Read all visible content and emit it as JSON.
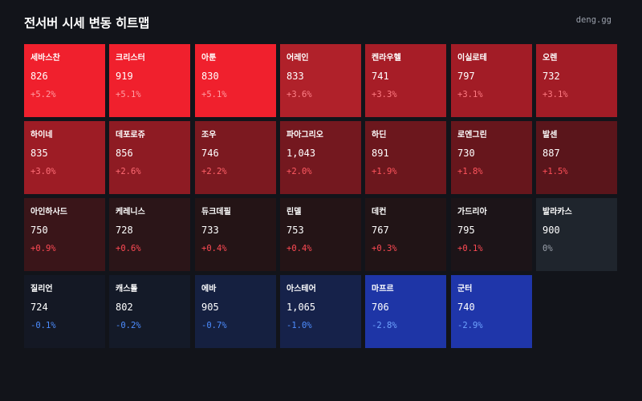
{
  "header": {
    "title": "전서버 시세 변동 히트맵",
    "brand": "deng.gg"
  },
  "colors": {
    "background": "#12141a",
    "up_text": "#ff5a5a",
    "down_text": "#4d8dff",
    "flat_text": "#9aa0ab"
  },
  "tiles": [
    {
      "name": "세바스찬",
      "price": "826",
      "change": "+5.2%",
      "bg": "#f0202d",
      "change_color": "#ff9da3"
    },
    {
      "name": "크리스터",
      "price": "919",
      "change": "+5.1%",
      "bg": "#f0202d",
      "change_color": "#ff9da3"
    },
    {
      "name": "아툰",
      "price": "830",
      "change": "+5.1%",
      "bg": "#f0202d",
      "change_color": "#ff9da3"
    },
    {
      "name": "어레인",
      "price": "833",
      "change": "+3.6%",
      "bg": "#b0212a",
      "change_color": "#ff8088"
    },
    {
      "name": "켄라우헬",
      "price": "741",
      "change": "+3.3%",
      "bg": "#a71d27",
      "change_color": "#ff7a82"
    },
    {
      "name": "이실로테",
      "price": "797",
      "change": "+3.1%",
      "bg": "#a21c26",
      "change_color": "#ff7a82"
    },
    {
      "name": "오렌",
      "price": "732",
      "change": "+3.1%",
      "bg": "#a21c26",
      "change_color": "#ff7a82"
    },
    {
      "name": "하이네",
      "price": "835",
      "change": "+3.0%",
      "bg": "#9d1c25",
      "change_color": "#ff6f78"
    },
    {
      "name": "데포로쥬",
      "price": "856",
      "change": "+2.6%",
      "bg": "#8e1b23",
      "change_color": "#ff6b74"
    },
    {
      "name": "조우",
      "price": "746",
      "change": "+2.2%",
      "bg": "#7c1920",
      "change_color": "#ff6068"
    },
    {
      "name": "파아그리오",
      "price": "1,043",
      "change": "+2.0%",
      "bg": "#74181f",
      "change_color": "#ff5a62"
    },
    {
      "name": "하딘",
      "price": "891",
      "change": "+1.9%",
      "bg": "#6c171d",
      "change_color": "#ff555d"
    },
    {
      "name": "로엔그린",
      "price": "730",
      "change": "+1.8%",
      "bg": "#67161c",
      "change_color": "#ff555d"
    },
    {
      "name": "발센",
      "price": "887",
      "change": "+1.5%",
      "bg": "#5a151b",
      "change_color": "#ff4f58"
    },
    {
      "name": "아인하사드",
      "price": "750",
      "change": "+0.9%",
      "bg": "#3a1519",
      "change_color": "#ff4a54"
    },
    {
      "name": "케레니스",
      "price": "728",
      "change": "+0.6%",
      "bg": "#2b1518",
      "change_color": "#ff4a54"
    },
    {
      "name": "듀크데필",
      "price": "733",
      "change": "+0.4%",
      "bg": "#241416",
      "change_color": "#ff4a54"
    },
    {
      "name": "린델",
      "price": "753",
      "change": "+0.4%",
      "bg": "#241416",
      "change_color": "#ff4a54"
    },
    {
      "name": "데컨",
      "price": "767",
      "change": "+0.3%",
      "bg": "#211416",
      "change_color": "#ff4a54"
    },
    {
      "name": "가드리아",
      "price": "795",
      "change": "+0.1%",
      "bg": "#1c1418",
      "change_color": "#ff4a54"
    },
    {
      "name": "발라카스",
      "price": "900",
      "change": "0%",
      "bg": "#1f252d",
      "change_color": "#9aa0ab"
    },
    {
      "name": "질리언",
      "price": "724",
      "change": "-0.1%",
      "bg": "#141824",
      "change_color": "#4d8dff"
    },
    {
      "name": "캐스톨",
      "price": "802",
      "change": "-0.2%",
      "bg": "#141a28",
      "change_color": "#4d8dff"
    },
    {
      "name": "에바",
      "price": "905",
      "change": "-0.7%",
      "bg": "#152040",
      "change_color": "#4d8dff"
    },
    {
      "name": "아스테어",
      "price": "1,065",
      "change": "-1.0%",
      "bg": "#16224a",
      "change_color": "#4d8dff"
    },
    {
      "name": "마프르",
      "price": "706",
      "change": "-2.8%",
      "bg": "#1e35a6",
      "change_color": "#6fa4ff"
    },
    {
      "name": "군터",
      "price": "740",
      "change": "-2.9%",
      "bg": "#1f36aa",
      "change_color": "#6fa4ff"
    }
  ]
}
